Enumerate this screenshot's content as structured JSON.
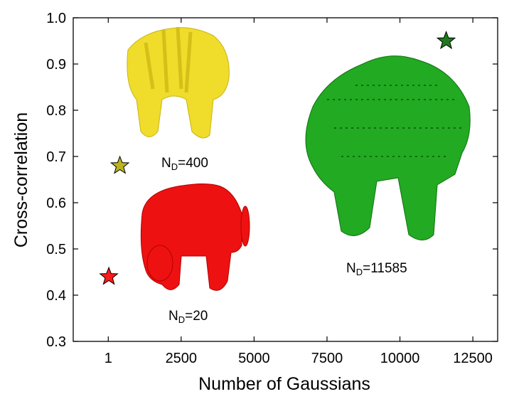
{
  "chart_data": {
    "type": "scatter",
    "x_label": "Number of Gaussians",
    "y_label": "Cross-correlation",
    "xlim": [
      -1200,
      13350
    ],
    "ylim": [
      0.3,
      1.0
    ],
    "xticks": [
      1,
      2500,
      5000,
      7500,
      10000,
      12500
    ],
    "yticks": [
      {
        "value": 0.3,
        "label": "0.3"
      },
      {
        "value": 0.4,
        "label": "0.4"
      },
      {
        "value": 0.5,
        "label": "0.5"
      },
      {
        "value": 0.6,
        "label": "0.6"
      },
      {
        "value": 0.7,
        "label": "0.7"
      },
      {
        "value": 0.8,
        "label": "0.8"
      },
      {
        "value": 0.9,
        "label": "0.9"
      },
      {
        "value": 1.0,
        "label": "1.0"
      }
    ],
    "marker": "star",
    "series": [
      {
        "color": "#ff1a1a",
        "x": [
          20
        ],
        "values": [
          0.44
        ]
      },
      {
        "color": "#bdb31e",
        "x": [
          400
        ],
        "values": [
          0.68
        ]
      },
      {
        "color": "#1f7a1f",
        "x": [
          11585
        ],
        "values": [
          0.95
        ]
      }
    ],
    "annotations": [
      {
        "base": "N",
        "sub": "D",
        "text": "=400"
      },
      {
        "base": "N",
        "sub": "D",
        "text": "=20"
      },
      {
        "base": "N",
        "sub": "D",
        "text": "=11585"
      }
    ]
  }
}
